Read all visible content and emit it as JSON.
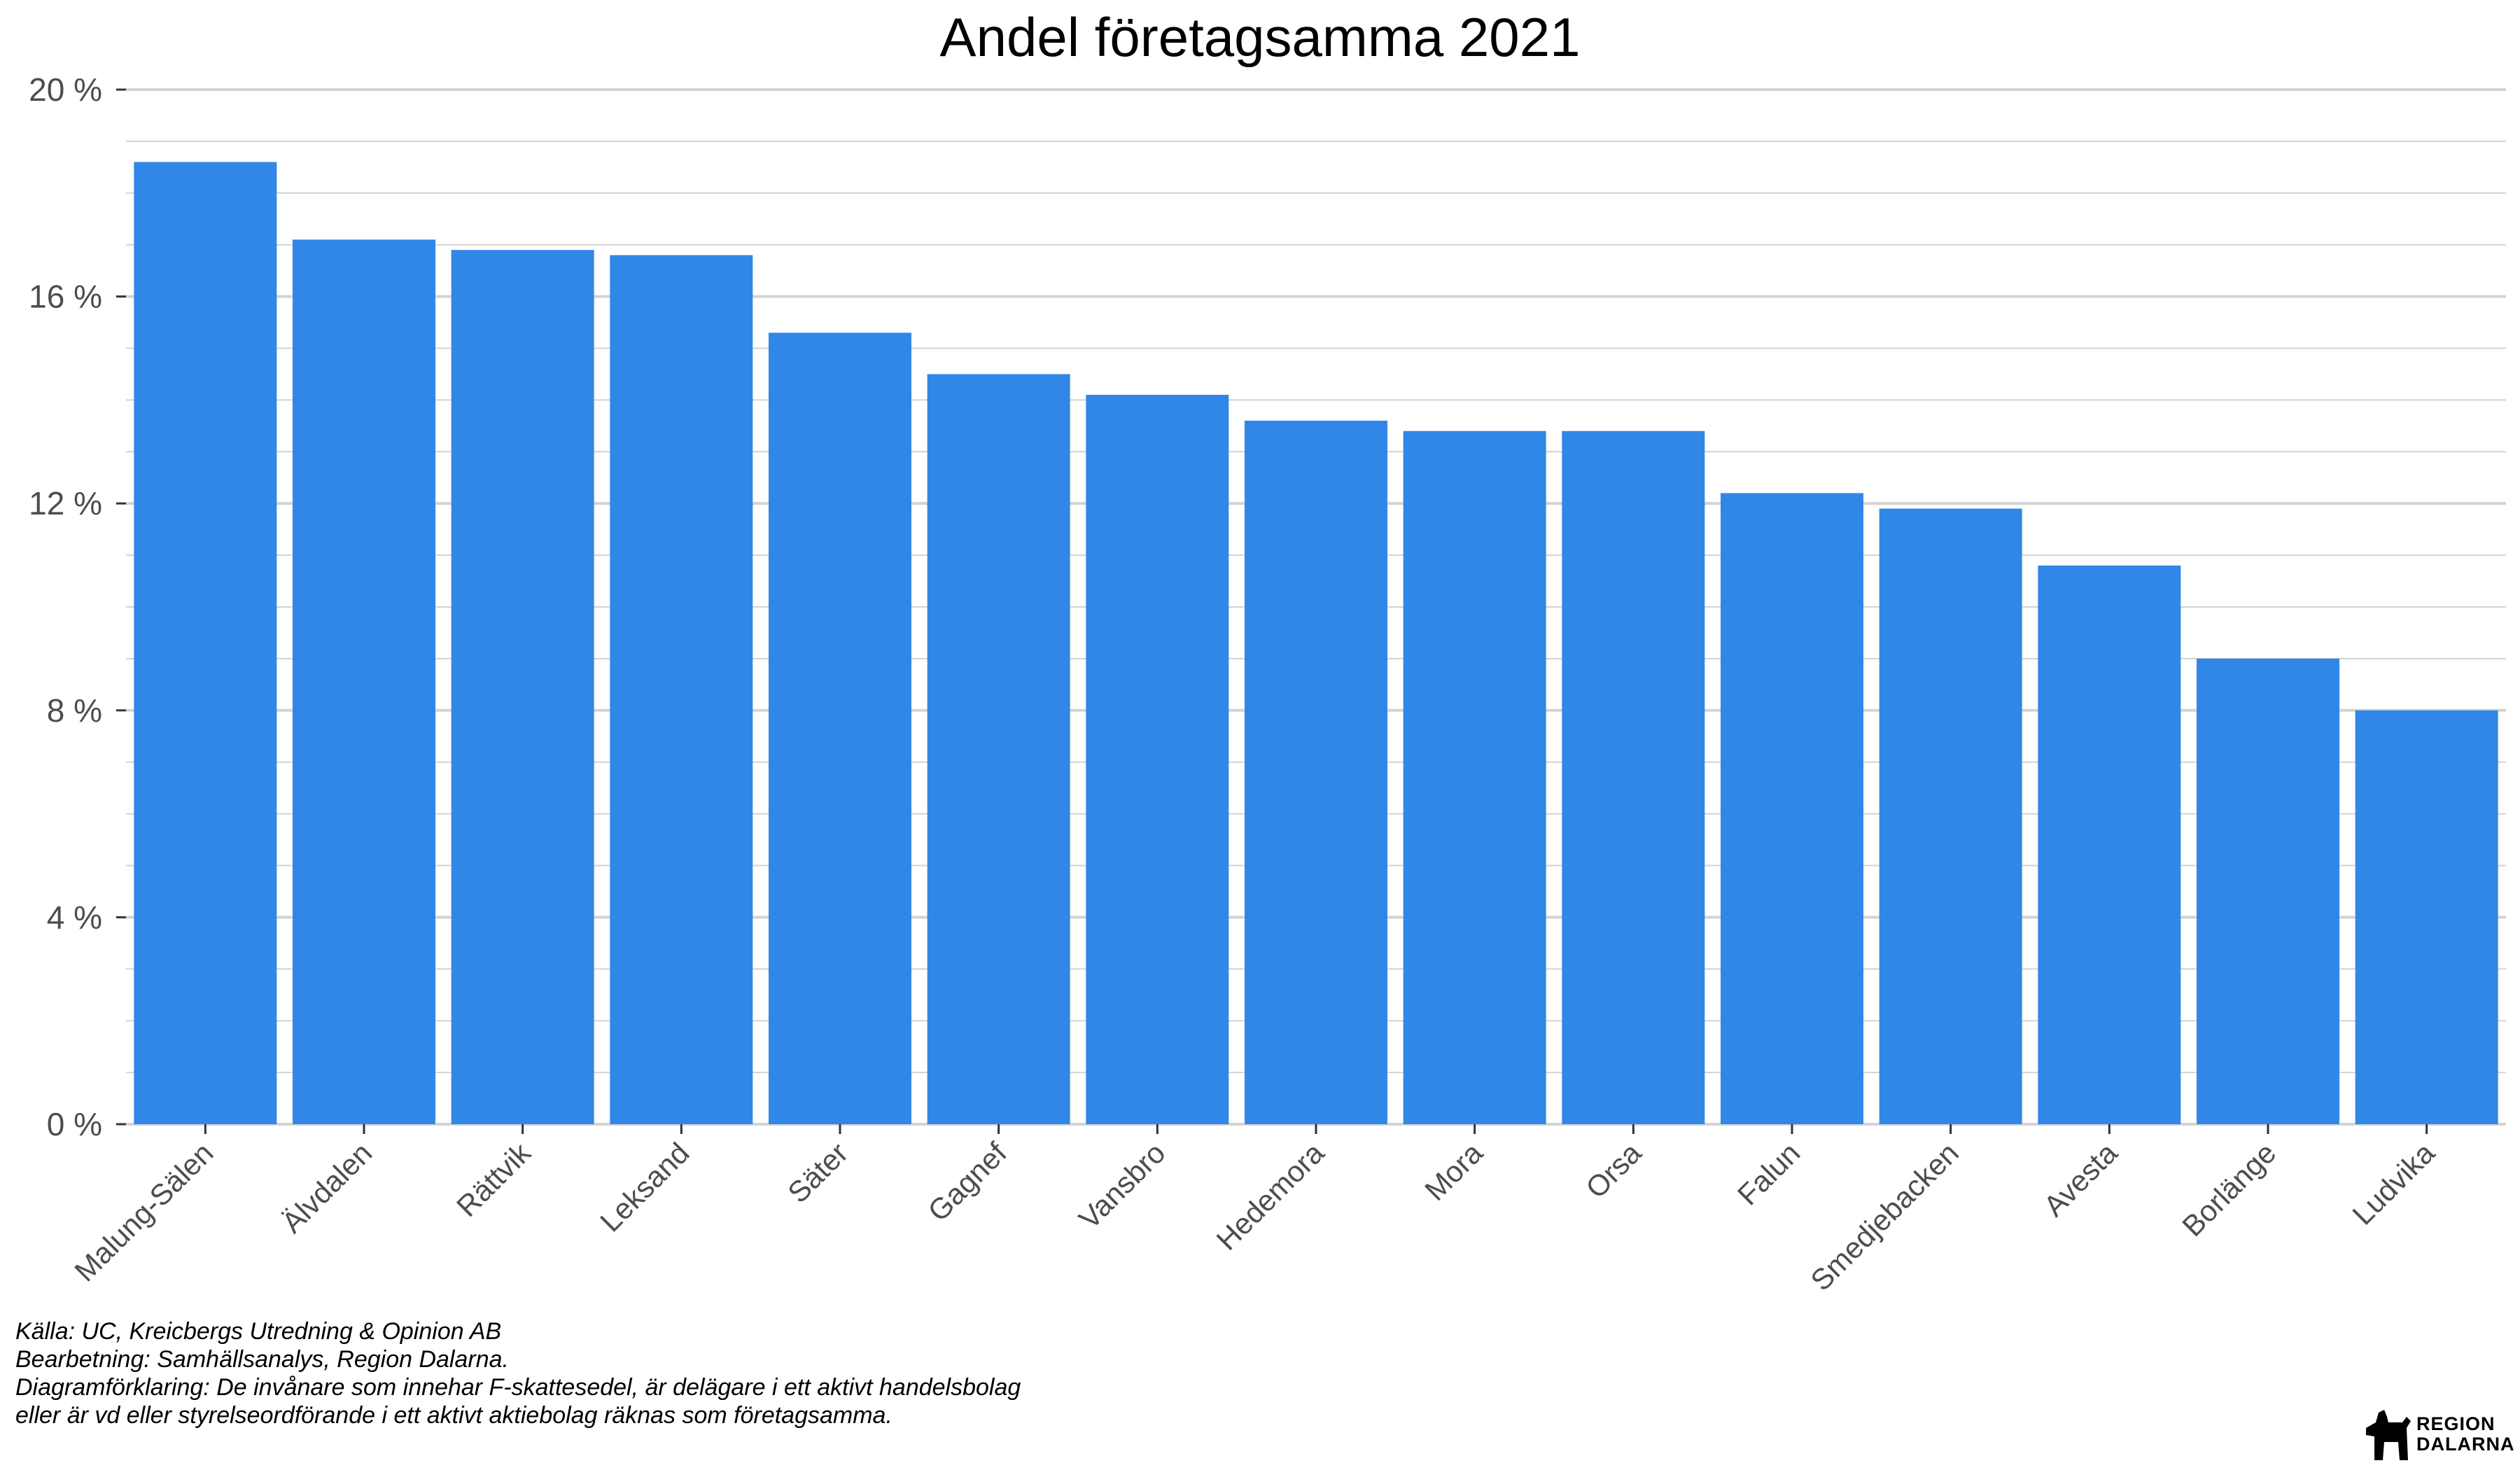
{
  "chart_data": {
    "type": "bar",
    "title": "Andel företagsamma 2021",
    "xlabel": "",
    "ylabel": "",
    "categories": [
      "Malung-Sälen",
      "Älvdalen",
      "Rättvik",
      "Leksand",
      "Säter",
      "Gagnef",
      "Vansbro",
      "Hedemora",
      "Mora",
      "Orsa",
      "Falun",
      "Smedjebacken",
      "Avesta",
      "Borlänge",
      "Ludvika"
    ],
    "values": [
      18.6,
      17.1,
      16.9,
      16.8,
      15.3,
      14.5,
      14.1,
      13.6,
      13.4,
      13.4,
      12.2,
      11.9,
      10.8,
      9.0,
      8.0
    ],
    "ylim": [
      0,
      20
    ],
    "yticks": [
      0,
      4,
      8,
      12,
      16,
      20
    ],
    "ytick_labels": [
      "0 %",
      "4 %",
      "8 %",
      "12 %",
      "16 %",
      "20 %"
    ],
    "minor_gridlines": true,
    "bar_color": "#3087E8",
    "grid_color": "#d3d3d3"
  },
  "caption": {
    "line1": "Källa: UC, Kreicbergs Utredning & Opinion AB",
    "line2": "Bearbetning: Samhällsanalys, Region Dalarna.",
    "line3": "Diagramförklaring: De invånare som innehar F-skattesedel, är delägare i ett aktivt handelsbolag",
    "line4": "eller är vd eller styrelseordförande i ett aktivt aktiebolag räknas som företagsamma."
  },
  "logo": {
    "line1": "REGION",
    "line2": "DALARNA",
    "icon": "dala-horse-icon"
  }
}
